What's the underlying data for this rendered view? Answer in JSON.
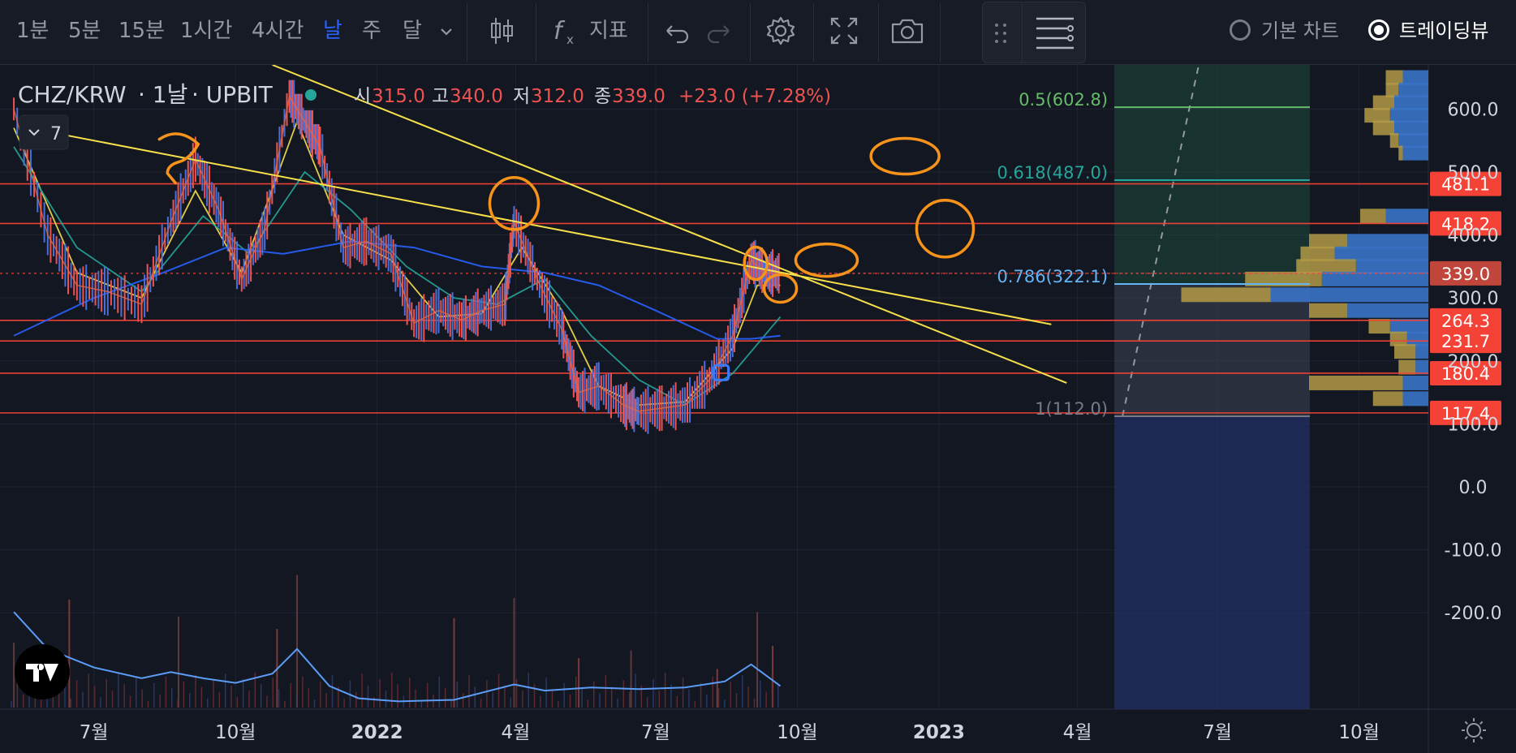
{
  "toolbar": {
    "intervals": [
      {
        "label": "1분",
        "active": false
      },
      {
        "label": "5분",
        "active": false
      },
      {
        "label": "15분",
        "active": false
      },
      {
        "label": "1시간",
        "active": false
      },
      {
        "label": "4시간",
        "active": false
      },
      {
        "label": "날",
        "active": true
      },
      {
        "label": "주",
        "active": false
      },
      {
        "label": "달",
        "active": false
      }
    ],
    "indicators_label": "지표",
    "basic_chart_label": "기본 차트",
    "tradingview_label": "트레이딩뷰",
    "selected_view": "트레이딩뷰"
  },
  "legend": {
    "symbol": "CHZ/KRW",
    "interval": "1날",
    "exchange": "UPBIT",
    "open_label": "시",
    "open": "315.0",
    "high_label": "고",
    "high": "340.0",
    "low_label": "저",
    "low": "312.0",
    "close_label": "종",
    "close": "339.0",
    "change": "+23.0 (+7.28%)",
    "collapse_count": "7"
  },
  "colors": {
    "background": "#131722",
    "up": "#ef5350",
    "down": "#2962ff",
    "ma_fast": "#f7e14b",
    "ma_mid": "#26a69a",
    "ma_slow": "#2962ff",
    "hline": "#f44336",
    "trendline": "#f7e14b",
    "annotation": "#f7931a"
  },
  "chart_data": {
    "type": "line",
    "title": "CHZ/KRW 1날 UPBIT",
    "x_ticks": [
      "7월",
      "10월",
      "2022",
      "4월",
      "7월",
      "10월",
      "2023",
      "4월",
      "7월",
      "10월"
    ],
    "y_ticks": [
      600.0,
      500.0,
      400.0,
      300.0,
      200.0,
      100.0,
      0.0,
      -100.0,
      -200.0
    ],
    "ylim": [
      -250,
      670
    ],
    "price_series": {
      "name": "CHZ/KRW",
      "x": [
        "2021-05-10",
        "2021-06-01",
        "2021-06-20",
        "2021-07-10",
        "2021-08-01",
        "2021-08-20",
        "2021-09-05",
        "2021-09-20",
        "2021-10-05",
        "2021-10-20",
        "2021-11-05",
        "2021-11-15",
        "2021-11-25",
        "2021-12-10",
        "2021-12-25",
        "2022-01-10",
        "2022-01-25",
        "2022-02-10",
        "2022-02-25",
        "2022-03-10",
        "2022-03-25",
        "2022-03-31",
        "2022-04-15",
        "2022-05-01",
        "2022-05-12",
        "2022-05-25",
        "2022-06-10",
        "2022-06-20",
        "2022-07-05",
        "2022-07-20",
        "2022-08-05",
        "2022-08-20",
        "2022-09-01",
        "2022-09-10",
        "2022-09-20"
      ],
      "values": [
        600,
        400,
        320,
        310,
        290,
        420,
        520,
        440,
        330,
        410,
        620,
        580,
        540,
        380,
        390,
        370,
        260,
        280,
        265,
        280,
        290,
        420,
        330,
        250,
        150,
        160,
        130,
        120,
        125,
        130,
        170,
        240,
        360,
        340,
        339
      ]
    },
    "moving_averages": [
      {
        "color": "#f7e14b",
        "x": [
          "2021-05-10",
          "2021-06-20",
          "2021-08-01",
          "2021-09-05",
          "2021-10-05",
          "2021-11-10",
          "2021-12-10",
          "2022-01-10",
          "2022-02-10",
          "2022-03-10",
          "2022-04-05",
          "2022-05-01",
          "2022-05-25",
          "2022-06-20",
          "2022-07-20",
          "2022-08-20",
          "2022-09-05",
          "2022-09-20"
        ],
        "values": [
          570,
          340,
          300,
          470,
          340,
          580,
          400,
          360,
          270,
          275,
          380,
          280,
          160,
          130,
          135,
          220,
          320,
          320
        ]
      },
      {
        "color": "#26a69a",
        "x": [
          "2021-05-10",
          "2021-06-20",
          "2021-08-01",
          "2021-09-10",
          "2021-10-10",
          "2021-11-15",
          "2021-12-15",
          "2022-01-20",
          "2022-02-20",
          "2022-03-20",
          "2022-04-20",
          "2022-05-20",
          "2022-06-20",
          "2022-07-20",
          "2022-08-20",
          "2022-09-20"
        ],
        "values": [
          540,
          380,
          310,
          430,
          370,
          500,
          440,
          350,
          300,
          290,
          330,
          240,
          170,
          130,
          180,
          270
        ]
      },
      {
        "color": "#2962ff",
        "x": [
          "2021-05-10",
          "2021-07-01",
          "2021-08-15",
          "2021-09-25",
          "2021-11-01",
          "2021-12-15",
          "2022-01-25",
          "2022-03-10",
          "2022-04-20",
          "2022-05-25",
          "2022-07-01",
          "2022-08-10",
          "2022-09-01",
          "2022-09-20"
        ],
        "values": [
          240,
          300,
          340,
          380,
          370,
          390,
          380,
          350,
          340,
          320,
          280,
          235,
          235,
          240
        ]
      },
      {
        "color": "#26a69a",
        "x": [
          "2021-05-10",
          "2021-06-01",
          "2021-06-20",
          "2021-07-10",
          "2021-08-01",
          "2021-08-20",
          "2021-09-05",
          "2021-09-20",
          "2021-10-05",
          "2021-10-20",
          "2021-11-05",
          "2021-11-15",
          "2021-11-25",
          "2021-12-10",
          "2021-12-25",
          "2022-01-10",
          "2022-01-25",
          "2022-02-10",
          "2022-02-25",
          "2022-03-10",
          "2022-03-25",
          "2022-03-31",
          "2022-04-15",
          "2022-05-01",
          "2022-05-12",
          "2022-05-25",
          "2022-06-10",
          "2022-06-20",
          "2022-07-05",
          "2022-07-20",
          "2022-08-05",
          "2022-08-20",
          "2022-09-01",
          "2022-09-10",
          "2022-09-20"
        ],
        "values": [
          600,
          400,
          320,
          310,
          290,
          420,
          520,
          440,
          330,
          410,
          620,
          580,
          540,
          380,
          390,
          370,
          260,
          280,
          265,
          280,
          290,
          420,
          330,
          250,
          150,
          160,
          130,
          120,
          125,
          130,
          170,
          240,
          360,
          340,
          339
        ]
      }
    ],
    "horizontal_levels": [
      481.1,
      418.2,
      339.0,
      264.3,
      231.7,
      180.4,
      117.4
    ],
    "level_labels": [
      "481.1",
      "418.2",
      "339.0",
      "264.3",
      "231.7",
      "180.4",
      "117.4"
    ],
    "fibonacci": [
      {
        "label": "0.5(602.8)",
        "value": 602.8,
        "color": "#66bb6a"
      },
      {
        "label": "0.618(487.0)",
        "value": 487.0,
        "color": "#26a69a"
      },
      {
        "label": "0.786(322.1)",
        "value": 322.1,
        "color": "#64b5f6"
      },
      {
        "label": "1(112.0)",
        "value": 112.0,
        "color": "#787b86"
      }
    ],
    "trendlines": [
      {
        "x": [
          "2021-06-05",
          "2023-03-15"
        ],
        "values": [
          562,
          258
        ]
      },
      {
        "x": [
          "2021-10-25",
          "2023-03-25"
        ],
        "values": [
          670,
          165
        ]
      }
    ],
    "volume_profile": [
      {
        "price": 650,
        "up": 20,
        "down": 30
      },
      {
        "price": 630,
        "up": 15,
        "down": 35
      },
      {
        "price": 610,
        "up": 25,
        "down": 40
      },
      {
        "price": 590,
        "up": 30,
        "down": 45
      },
      {
        "price": 570,
        "up": 25,
        "down": 40
      },
      {
        "price": 550,
        "up": 10,
        "down": 35
      },
      {
        "price": 530,
        "up": 5,
        "down": 30
      },
      {
        "price": 430,
        "up": 30,
        "down": 50
      },
      {
        "price": 390,
        "up": 45,
        "down": 95
      },
      {
        "price": 370,
        "up": 40,
        "down": 110
      },
      {
        "price": 350,
        "up": 70,
        "down": 85
      },
      {
        "price": 330,
        "up": 90,
        "down": 125
      },
      {
        "price": 305,
        "up": 105,
        "down": 185
      },
      {
        "price": 280,
        "up": 45,
        "down": 95
      },
      {
        "price": 255,
        "up": 25,
        "down": 45
      },
      {
        "price": 235,
        "up": 20,
        "down": 25
      },
      {
        "price": 215,
        "up": 25,
        "down": 15
      },
      {
        "price": 190,
        "up": 20,
        "down": 15
      },
      {
        "price": 165,
        "up": 110,
        "down": 30
      },
      {
        "price": 140,
        "up": 35,
        "down": 30
      }
    ],
    "volume_bars": {
      "x": [
        "2021-05-10",
        "2021-06-15",
        "2021-08-25",
        "2021-10-28",
        "2021-11-10",
        "2022-02-20",
        "2022-03-31",
        "2022-05-12",
        "2022-06-15",
        "2022-08-10",
        "2022-09-05",
        "2022-09-15"
      ],
      "values": [
        420,
        700,
        590,
        510,
        860,
        580,
        710,
        320,
        370,
        250,
        620,
        400
      ]
    },
    "volume_ma": {
      "x": [
        "2021-05-10",
        "2021-06-01",
        "2021-07-01",
        "2021-08-01",
        "2021-08-20",
        "2021-09-10",
        "2021-10-01",
        "2021-10-25",
        "2021-11-10",
        "2021-12-01",
        "2021-12-20",
        "2022-01-15",
        "2022-02-20",
        "2022-03-31",
        "2022-04-20",
        "2022-05-20",
        "2022-06-20",
        "2022-07-20",
        "2022-08-15",
        "2022-09-01",
        "2022-09-20"
      ],
      "values": [
        620,
        380,
        260,
        190,
        230,
        190,
        160,
        220,
        380,
        140,
        60,
        40,
        50,
        150,
        110,
        130,
        120,
        130,
        170,
        280,
        140
      ]
    },
    "projection_zone": {
      "x": [
        "2023-04-25",
        "2023-08-30"
      ],
      "values": [
        -250,
        670
      ]
    }
  }
}
